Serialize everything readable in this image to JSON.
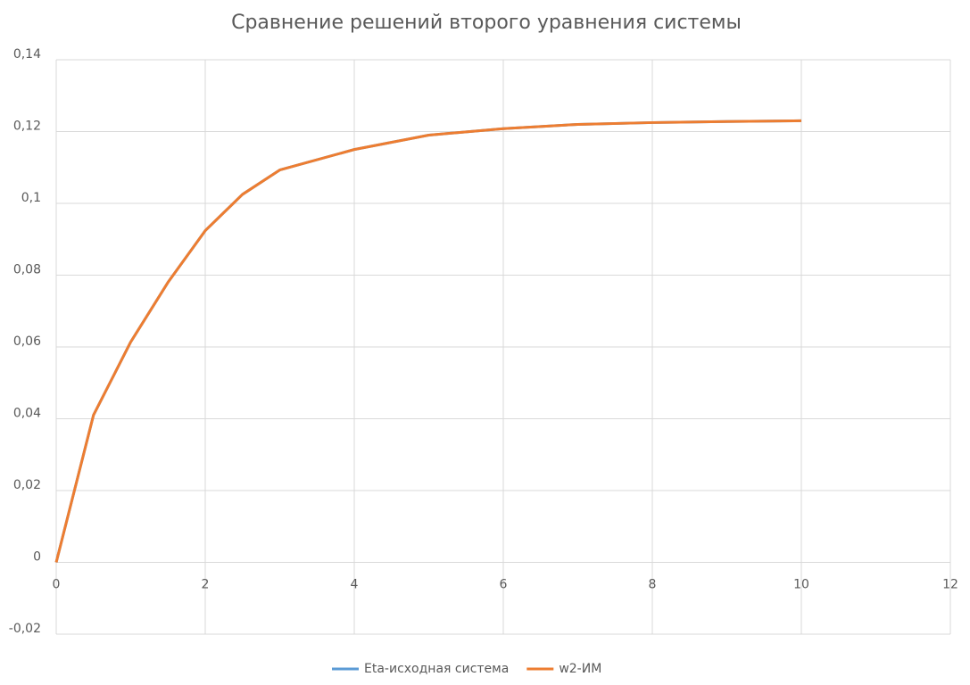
{
  "chart_data": {
    "type": "line",
    "title": "Сравнение решений второго уравнения системы",
    "x": [
      0,
      0.5,
      1,
      1.5,
      2,
      2.5,
      3,
      4,
      5,
      6,
      7,
      8,
      9,
      10
    ],
    "series": [
      {
        "name": "Eta-исходная система",
        "color": "#5b9bd5",
        "values": [
          0,
          0.041,
          0.0614,
          0.078,
          0.0924,
          0.1025,
          0.1093,
          0.115,
          0.119,
          0.1208,
          0.122,
          0.1225,
          0.1228,
          0.123
        ]
      },
      {
        "name": "w2-ИМ",
        "color": "#ed7d31",
        "values": [
          0,
          0.041,
          0.0614,
          0.078,
          0.0924,
          0.1025,
          0.1093,
          0.115,
          0.119,
          0.1208,
          0.122,
          0.1225,
          0.1228,
          0.123
        ]
      }
    ],
    "xlim": [
      0,
      12
    ],
    "xticks": [
      0,
      2,
      4,
      6,
      8,
      10,
      12
    ],
    "ylim": [
      -0.02,
      0.14
    ],
    "yticks": [
      {
        "value": -0.02,
        "label": "-0,02"
      },
      0,
      {
        "value": 0.02,
        "label": "0,02"
      },
      {
        "value": 0.04,
        "label": "0,04"
      },
      {
        "value": 0.06,
        "label": "0,06"
      },
      {
        "value": 0.08,
        "label": "0,08"
      },
      {
        "value": 0.1,
        "label": "0,1"
      },
      {
        "value": 0.12,
        "label": "0,12"
      },
      {
        "value": 0.14,
        "label": "0,14"
      }
    ],
    "grid": true,
    "legend": "bottom"
  }
}
